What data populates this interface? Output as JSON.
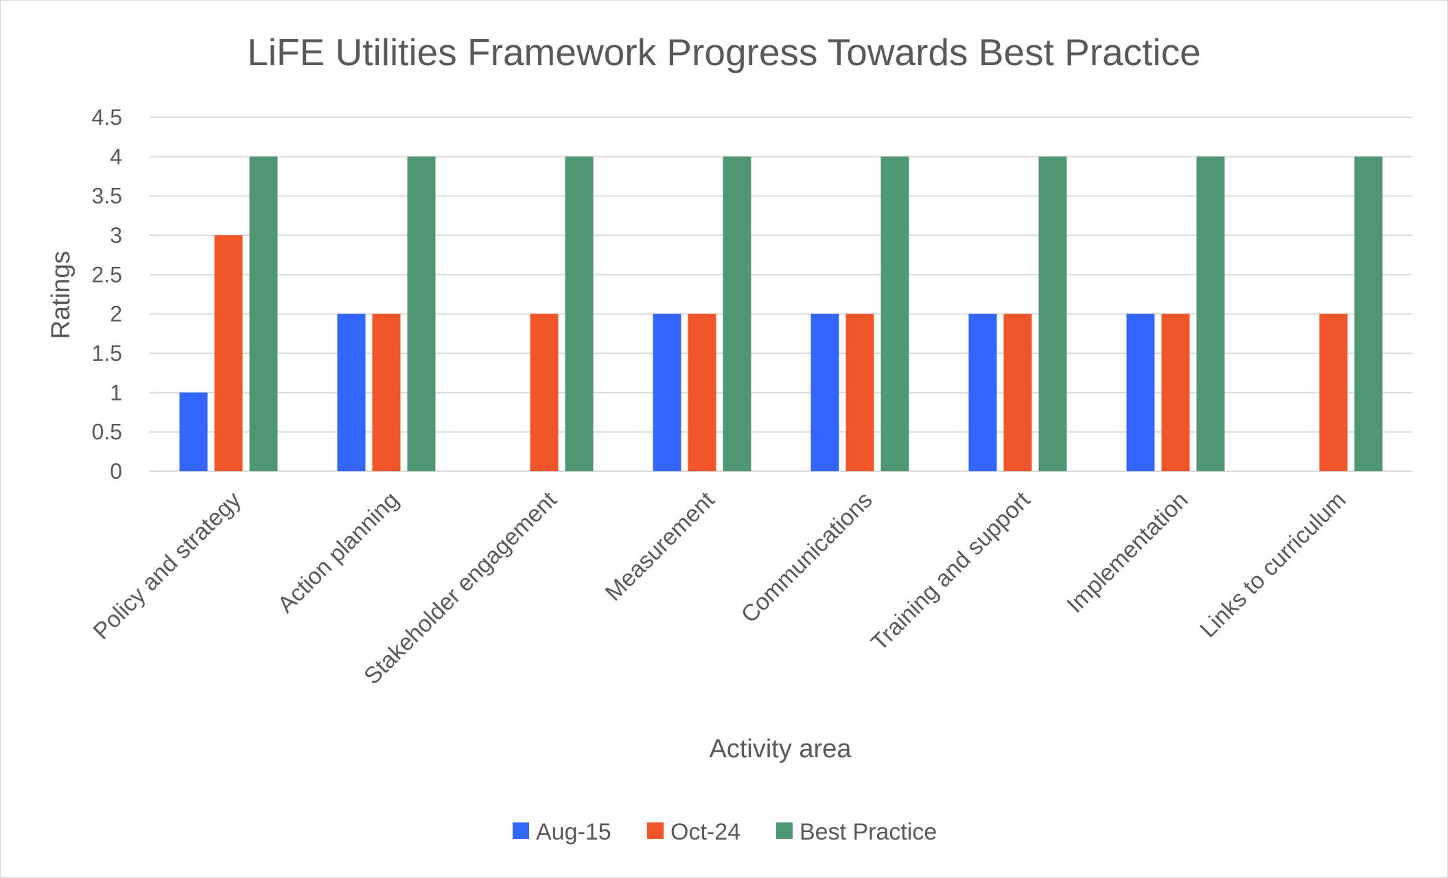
{
  "chart_data": {
    "type": "bar",
    "title": "LiFE Utilities Framework Progress Towards Best Practice",
    "xlabel": "Activity area",
    "ylabel": "Ratings",
    "ylim": [
      0,
      4.5
    ],
    "yticks": [
      "0",
      "0.5",
      "1",
      "1.5",
      "2",
      "2.5",
      "3",
      "3.5",
      "4",
      "4.5"
    ],
    "grid": true,
    "legend_position": "bottom",
    "categories": [
      "Policy and strategy",
      "Action planning",
      "Stakeholder engagement",
      "Measurement",
      "Communications",
      "Training and support",
      "Implementation",
      "Links to curriculum"
    ],
    "series": [
      {
        "name": "Aug-15",
        "color": "#3366ff",
        "values": [
          1,
          2,
          0,
          2,
          2,
          2,
          2,
          0
        ]
      },
      {
        "name": "Oct-24",
        "color": "#f0562a",
        "values": [
          3,
          2,
          2,
          2,
          2,
          2,
          2,
          2
        ]
      },
      {
        "name": "Best Practice",
        "color": "#4f9673",
        "values": [
          4,
          4,
          4,
          4,
          4,
          4,
          4,
          4
        ]
      }
    ]
  }
}
